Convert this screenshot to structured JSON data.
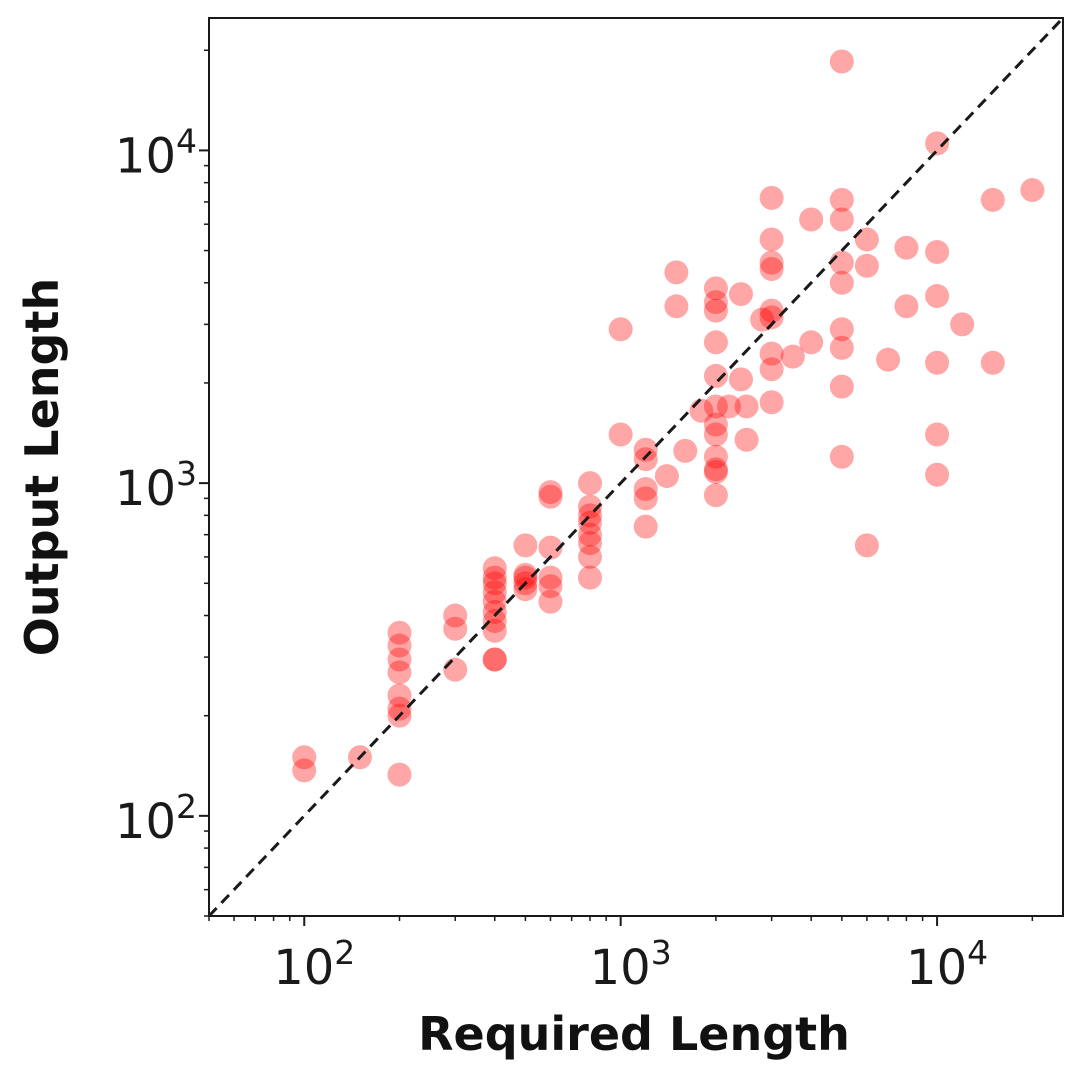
{
  "chart_data": {
    "type": "scatter",
    "title": "",
    "xlabel": "Required Length",
    "ylabel": "Output Length",
    "xscale": "log",
    "yscale": "log",
    "xlim": [
      50,
      25000
    ],
    "ylim": [
      50,
      25000
    ],
    "grid": false,
    "reference_line": {
      "style": "dashed",
      "color": "#000000",
      "description": "y = x"
    },
    "marker_color": "#ff0000",
    "marker_alpha": 0.35,
    "x_ticks": [
      {
        "base": "10",
        "exp": "2",
        "value": 100
      },
      {
        "base": "10",
        "exp": "3",
        "value": 1000
      },
      {
        "base": "10",
        "exp": "4",
        "value": 10000
      }
    ],
    "y_ticks": [
      {
        "base": "10",
        "exp": "2",
        "value": 100
      },
      {
        "base": "10",
        "exp": "3",
        "value": 1000
      },
      {
        "base": "10",
        "exp": "4",
        "value": 10000
      }
    ],
    "points": [
      [
        100,
        150
      ],
      [
        100,
        137
      ],
      [
        150,
        150
      ],
      [
        200,
        133
      ],
      [
        200,
        200
      ],
      [
        200,
        210
      ],
      [
        200,
        230
      ],
      [
        200,
        270
      ],
      [
        200,
        295
      ],
      [
        200,
        325
      ],
      [
        200,
        355
      ],
      [
        300,
        275
      ],
      [
        300,
        365
      ],
      [
        300,
        400
      ],
      [
        400,
        295
      ],
      [
        400,
        295
      ],
      [
        400,
        360
      ],
      [
        400,
        385
      ],
      [
        400,
        410
      ],
      [
        400,
        440
      ],
      [
        400,
        470
      ],
      [
        400,
        500
      ],
      [
        400,
        520
      ],
      [
        400,
        555
      ],
      [
        500,
        480
      ],
      [
        500,
        500
      ],
      [
        500,
        520
      ],
      [
        500,
        530
      ],
      [
        500,
        650
      ],
      [
        600,
        440
      ],
      [
        600,
        490
      ],
      [
        600,
        520
      ],
      [
        600,
        640
      ],
      [
        600,
        910
      ],
      [
        600,
        940
      ],
      [
        800,
        520
      ],
      [
        800,
        600
      ],
      [
        800,
        660
      ],
      [
        800,
        700
      ],
      [
        800,
        760
      ],
      [
        800,
        800
      ],
      [
        800,
        850
      ],
      [
        800,
        1000
      ],
      [
        1000,
        1400
      ],
      [
        1000,
        2900
      ],
      [
        1200,
        740
      ],
      [
        1200,
        900
      ],
      [
        1200,
        960
      ],
      [
        1200,
        1180
      ],
      [
        1200,
        1260
      ],
      [
        1400,
        1050
      ],
      [
        1500,
        3400
      ],
      [
        1500,
        4300
      ],
      [
        1600,
        1250
      ],
      [
        1800,
        1650
      ],
      [
        2000,
        920
      ],
      [
        2000,
        1080
      ],
      [
        2000,
        1100
      ],
      [
        2000,
        1200
      ],
      [
        2000,
        1400
      ],
      [
        2000,
        1500
      ],
      [
        2000,
        1700
      ],
      [
        2000,
        2100
      ],
      [
        2000,
        2650
      ],
      [
        2000,
        3300
      ],
      [
        2000,
        3500
      ],
      [
        2000,
        3850
      ],
      [
        2200,
        1700
      ],
      [
        2400,
        2050
      ],
      [
        2400,
        3700
      ],
      [
        2500,
        1350
      ],
      [
        2500,
        1700
      ],
      [
        2800,
        3100
      ],
      [
        3000,
        1750
      ],
      [
        3000,
        2200
      ],
      [
        3000,
        2450
      ],
      [
        3000,
        3150
      ],
      [
        3000,
        3300
      ],
      [
        3000,
        4400
      ],
      [
        3000,
        4600
      ],
      [
        3000,
        5400
      ],
      [
        3000,
        7200
      ],
      [
        3500,
        2400
      ],
      [
        4000,
        2650
      ],
      [
        4000,
        6200
      ],
      [
        5000,
        1200
      ],
      [
        5000,
        1950
      ],
      [
        5000,
        2550
      ],
      [
        5000,
        2900
      ],
      [
        5000,
        4000
      ],
      [
        5000,
        4600
      ],
      [
        5000,
        6200
      ],
      [
        5000,
        7100
      ],
      [
        5000,
        18500
      ],
      [
        6000,
        650
      ],
      [
        6000,
        4500
      ],
      [
        6000,
        5400
      ],
      [
        7000,
        2350
      ],
      [
        8000,
        3400
      ],
      [
        8000,
        5100
      ],
      [
        10000,
        1060
      ],
      [
        10000,
        1400
      ],
      [
        10000,
        2300
      ],
      [
        10000,
        3650
      ],
      [
        10000,
        4950
      ],
      [
        10000,
        10500
      ],
      [
        12000,
        3000
      ],
      [
        15000,
        2300
      ],
      [
        15000,
        7100
      ],
      [
        20000,
        7600
      ]
    ]
  }
}
